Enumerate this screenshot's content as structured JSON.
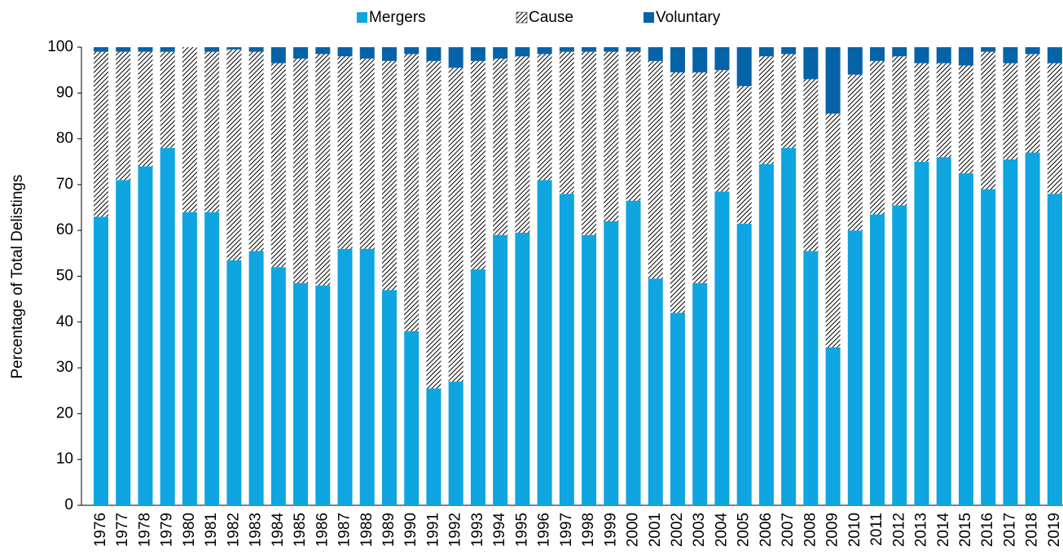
{
  "chart_data": {
    "type": "stacked_bar",
    "y_label": "Percentage of Total Delistings",
    "categories": [
      "1976",
      "1977",
      "1978",
      "1979",
      "1980",
      "1981",
      "1982",
      "1983",
      "1984",
      "1985",
      "1986",
      "1987",
      "1988",
      "1989",
      "1990",
      "1991",
      "1992",
      "1993",
      "1994",
      "1995",
      "1996",
      "1997",
      "1998",
      "1999",
      "2000",
      "2001",
      "2002",
      "2003",
      "2004",
      "2005",
      "2006",
      "2007",
      "2008",
      "2009",
      "2010",
      "2011",
      "2012",
      "2013",
      "2014",
      "2015",
      "2016",
      "2017",
      "2018",
      "2019"
    ],
    "series": [
      {
        "name": "Mergers",
        "color": "#0ea5e0",
        "values": [
          63,
          71,
          74,
          78,
          64,
          64,
          53.5,
          55.5,
          52,
          48.5,
          48,
          56,
          56,
          47,
          38,
          25.5,
          27,
          51.5,
          59,
          59.5,
          71,
          68,
          59,
          62,
          66.5,
          49.5,
          42,
          48.5,
          68.5,
          61.5,
          74.5,
          78,
          55.5,
          34.5,
          60,
          63.5,
          65.5,
          75,
          76,
          72.5,
          69,
          75.5,
          77,
          68
        ]
      },
      {
        "name": "Cause",
        "color": "#000000",
        "hatch": true,
        "values": [
          36,
          28,
          25,
          21,
          36,
          35,
          46,
          43.5,
          44.5,
          49,
          50.5,
          42,
          41.5,
          50,
          60.5,
          71.5,
          68.5,
          45.5,
          38.5,
          38.5,
          27.5,
          31,
          40,
          37,
          32.5,
          47.5,
          52.5,
          46,
          26.5,
          30,
          23.5,
          20.5,
          37.5,
          51,
          34,
          33.5,
          32.5,
          21.5,
          20.5,
          23.5,
          30,
          21,
          21.5,
          28.5
        ]
      },
      {
        "name": "Voluntary",
        "color": "#0763a8",
        "values": [
          1,
          1,
          1,
          1,
          0,
          1,
          0.5,
          1,
          3.5,
          2.5,
          1.5,
          2,
          2.5,
          3,
          1.5,
          3,
          4.5,
          3,
          2.5,
          2,
          1.5,
          1,
          1,
          1,
          1,
          3,
          5.5,
          5.5,
          5,
          8.5,
          2,
          1.5,
          7,
          14.5,
          6,
          3,
          2,
          3.5,
          3.5,
          4,
          1,
          3.5,
          1.5,
          3.5
        ]
      }
    ],
    "ylim": [
      0,
      100
    ],
    "yticks": [
      0,
      10,
      20,
      30,
      40,
      50,
      60,
      70,
      80,
      90,
      100
    ],
    "grid": false,
    "legend": "top"
  }
}
